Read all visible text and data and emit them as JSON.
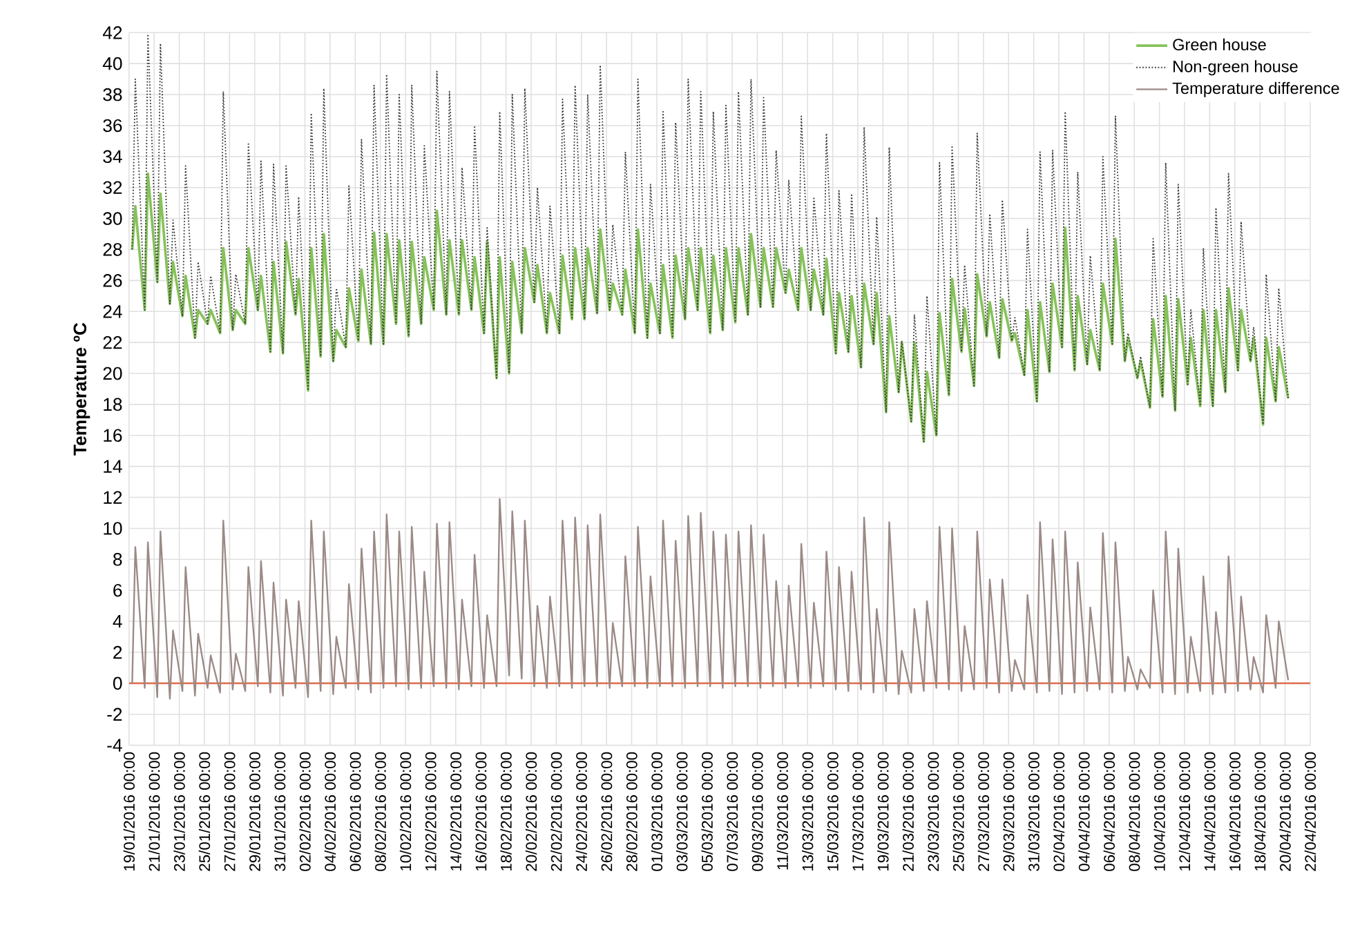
{
  "chart_data": {
    "type": "line",
    "ylabel": "Temperature ºC",
    "legend": "top right",
    "grid": true,
    "xlim": [
      "2016-01-19",
      "2016-04-22"
    ],
    "ylim": [
      -4,
      42
    ],
    "yticks": [
      -4,
      -2,
      0,
      2,
      4,
      6,
      8,
      10,
      12,
      14,
      16,
      18,
      20,
      22,
      24,
      26,
      28,
      30,
      32,
      34,
      36,
      38,
      40,
      42
    ],
    "xticks": [
      {
        "value": "2016-01-19",
        "label": "19/01/2016 00:00"
      },
      {
        "value": "2016-01-21",
        "label": "21/01/2016 00:00"
      },
      {
        "value": "2016-01-23",
        "label": "23/01/2016 00:00"
      },
      {
        "value": "2016-01-25",
        "label": "25/01/2016 00:00"
      },
      {
        "value": "2016-01-27",
        "label": "27/01/2016 00:00"
      },
      {
        "value": "2016-01-29",
        "label": "29/01/2016 00:00"
      },
      {
        "value": "2016-01-31",
        "label": "31/01/2016 00:00"
      },
      {
        "value": "2016-02-02",
        "label": "02/02/2016 00:00"
      },
      {
        "value": "2016-02-04",
        "label": "04/02/2016 00:00"
      },
      {
        "value": "2016-02-06",
        "label": "06/02/2016 00:00"
      },
      {
        "value": "2016-02-08",
        "label": "08/02/2016 00:00"
      },
      {
        "value": "2016-02-10",
        "label": "10/02/2016 00:00"
      },
      {
        "value": "2016-02-12",
        "label": "12/02/2016 00:00"
      },
      {
        "value": "2016-02-14",
        "label": "14/02/2016 00:00"
      },
      {
        "value": "2016-02-16",
        "label": "16/02/2016 00:00"
      },
      {
        "value": "2016-02-18",
        "label": "18/02/2016 00:00"
      },
      {
        "value": "2016-02-20",
        "label": "20/02/2016 00:00"
      },
      {
        "value": "2016-02-22",
        "label": "22/02/2016 00:00"
      },
      {
        "value": "2016-02-24",
        "label": "24/02/2016 00:00"
      },
      {
        "value": "2016-02-26",
        "label": "26/02/2016 00:00"
      },
      {
        "value": "2016-02-28",
        "label": "28/02/2016 00:00"
      },
      {
        "value": "2016-03-01",
        "label": "01/03/2016 00:00"
      },
      {
        "value": "2016-03-03",
        "label": "03/03/2016 00:00"
      },
      {
        "value": "2016-03-05",
        "label": "05/03/2016 00:00"
      },
      {
        "value": "2016-03-07",
        "label": "07/03/2016 00:00"
      },
      {
        "value": "2016-03-09",
        "label": "09/03/2016 00:00"
      },
      {
        "value": "2016-03-11",
        "label": "11/03/2016 00:00"
      },
      {
        "value": "2016-03-13",
        "label": "13/03/2016 00:00"
      },
      {
        "value": "2016-03-15",
        "label": "15/03/2016 00:00"
      },
      {
        "value": "2016-03-17",
        "label": "17/03/2016 00:00"
      },
      {
        "value": "2016-03-19",
        "label": "19/03/2016 00:00"
      },
      {
        "value": "2016-03-21",
        "label": "21/03/2016 00:00"
      },
      {
        "value": "2016-03-23",
        "label": "23/03/2016 00:00"
      },
      {
        "value": "2016-03-25",
        "label": "25/03/2016 00:00"
      },
      {
        "value": "2016-03-27",
        "label": "27/03/2016 00:00"
      },
      {
        "value": "2016-03-29",
        "label": "29/03/2016 00:00"
      },
      {
        "value": "2016-03-31",
        "label": "31/03/2016 00:00"
      },
      {
        "value": "2016-04-02",
        "label": "02/04/2016 00:00"
      },
      {
        "value": "2016-04-04",
        "label": "04/04/2016 00:00"
      },
      {
        "value": "2016-04-06",
        "label": "06/04/2016 00:00"
      },
      {
        "value": "2016-04-08",
        "label": "08/04/2016 00:00"
      },
      {
        "value": "2016-04-10",
        "label": "10/04/2016 00:00"
      },
      {
        "value": "2016-04-12",
        "label": "12/04/2016 00:00"
      },
      {
        "value": "2016-04-14",
        "label": "14/04/2016 00:00"
      },
      {
        "value": "2016-04-16",
        "label": "16/04/2016 00:00"
      },
      {
        "value": "2016-04-18",
        "label": "18/04/2016 00:00"
      },
      {
        "value": "2016-04-20",
        "label": "20/04/2016 00:00"
      },
      {
        "value": "2016-04-22",
        "label": "22/04/2016 00:00"
      }
    ],
    "ref_lines": [
      {
        "axis": "y",
        "value": 0,
        "color": "#e2704e"
      }
    ],
    "x": [
      "2016-01-19T06:00",
      "2016-01-19T12:00",
      "2016-01-20T06:00",
      "2016-01-20T12:00",
      "2016-01-21T06:00",
      "2016-01-21T12:00",
      "2016-01-22T06:00",
      "2016-01-22T12:00",
      "2016-01-23T06:00",
      "2016-01-23T12:00",
      "2016-01-24T06:00",
      "2016-01-24T12:00",
      "2016-01-25T06:00",
      "2016-01-25T12:00",
      "2016-01-26T06:00",
      "2016-01-26T12:00",
      "2016-01-27T06:00",
      "2016-01-27T12:00",
      "2016-01-28T06:00",
      "2016-01-28T12:00",
      "2016-01-29T06:00",
      "2016-01-29T12:00",
      "2016-01-30T06:00",
      "2016-01-30T12:00",
      "2016-01-31T06:00",
      "2016-01-31T12:00",
      "2016-02-01T06:00",
      "2016-02-01T12:00",
      "2016-02-02T06:00",
      "2016-02-02T12:00",
      "2016-02-03T06:00",
      "2016-02-03T12:00",
      "2016-02-04T06:00",
      "2016-02-04T12:00",
      "2016-02-05T06:00",
      "2016-02-05T12:00",
      "2016-02-06T06:00",
      "2016-02-06T12:00",
      "2016-02-07T06:00",
      "2016-02-07T12:00",
      "2016-02-08T06:00",
      "2016-02-08T12:00",
      "2016-02-09T06:00",
      "2016-02-09T12:00",
      "2016-02-10T06:00",
      "2016-02-10T12:00",
      "2016-02-11T06:00",
      "2016-02-11T12:00",
      "2016-02-12T06:00",
      "2016-02-12T12:00",
      "2016-02-13T06:00",
      "2016-02-13T12:00",
      "2016-02-14T06:00",
      "2016-02-14T12:00",
      "2016-02-15T06:00",
      "2016-02-15T12:00",
      "2016-02-16T06:00",
      "2016-02-16T12:00",
      "2016-02-17T06:00",
      "2016-02-17T12:00",
      "2016-02-18T06:00",
      "2016-02-18T12:00",
      "2016-02-19T06:00",
      "2016-02-19T12:00",
      "2016-02-20T06:00",
      "2016-02-20T12:00",
      "2016-02-21T06:00",
      "2016-02-21T12:00",
      "2016-02-22T06:00",
      "2016-02-22T12:00",
      "2016-02-23T06:00",
      "2016-02-23T12:00",
      "2016-02-24T06:00",
      "2016-02-24T12:00",
      "2016-02-25T06:00",
      "2016-02-25T12:00",
      "2016-02-26T06:00",
      "2016-02-26T12:00",
      "2016-02-27T06:00",
      "2016-02-27T12:00",
      "2016-02-28T06:00",
      "2016-02-28T12:00",
      "2016-02-29T06:00",
      "2016-02-29T12:00",
      "2016-03-01T06:00",
      "2016-03-01T12:00",
      "2016-03-02T06:00",
      "2016-03-02T12:00",
      "2016-03-03T06:00",
      "2016-03-03T12:00",
      "2016-03-04T06:00",
      "2016-03-04T12:00",
      "2016-03-05T06:00",
      "2016-03-05T12:00",
      "2016-03-06T06:00",
      "2016-03-06T12:00",
      "2016-03-07T06:00",
      "2016-03-07T12:00",
      "2016-03-08T06:00",
      "2016-03-08T12:00",
      "2016-03-09T06:00",
      "2016-03-09T12:00",
      "2016-03-10T06:00",
      "2016-03-10T12:00",
      "2016-03-11T06:00",
      "2016-03-11T12:00",
      "2016-03-12T06:00",
      "2016-03-12T12:00",
      "2016-03-13T06:00",
      "2016-03-13T12:00",
      "2016-03-14T06:00",
      "2016-03-14T12:00",
      "2016-03-15T06:00",
      "2016-03-15T12:00",
      "2016-03-16T06:00",
      "2016-03-16T12:00",
      "2016-03-17T06:00",
      "2016-03-17T12:00",
      "2016-03-18T06:00",
      "2016-03-18T12:00",
      "2016-03-19T06:00",
      "2016-03-19T12:00",
      "2016-03-20T06:00",
      "2016-03-20T12:00",
      "2016-03-21T06:00",
      "2016-03-21T12:00",
      "2016-03-22T06:00",
      "2016-03-22T12:00",
      "2016-03-23T06:00",
      "2016-03-23T12:00",
      "2016-03-24T06:00",
      "2016-03-24T12:00",
      "2016-03-25T06:00",
      "2016-03-25T12:00",
      "2016-03-26T06:00",
      "2016-03-26T12:00",
      "2016-03-27T06:00",
      "2016-03-27T12:00",
      "2016-03-28T06:00",
      "2016-03-28T12:00",
      "2016-03-29T06:00",
      "2016-03-29T12:00",
      "2016-03-30T06:00",
      "2016-03-30T12:00",
      "2016-03-31T06:00",
      "2016-03-31T12:00",
      "2016-04-01T06:00",
      "2016-04-01T12:00",
      "2016-04-02T06:00",
      "2016-04-02T12:00",
      "2016-04-03T06:00",
      "2016-04-03T12:00",
      "2016-04-04T06:00",
      "2016-04-04T12:00",
      "2016-04-05T06:00",
      "2016-04-05T12:00",
      "2016-04-06T06:00",
      "2016-04-06T12:00",
      "2016-04-07T06:00",
      "2016-04-07T12:00",
      "2016-04-08T06:00",
      "2016-04-08T12:00",
      "2016-04-09T06:00",
      "2016-04-09T12:00",
      "2016-04-10T06:00",
      "2016-04-10T12:00",
      "2016-04-11T06:00",
      "2016-04-11T12:00",
      "2016-04-12T06:00",
      "2016-04-12T12:00",
      "2016-04-13T06:00",
      "2016-04-13T12:00",
      "2016-04-14T06:00",
      "2016-04-14T12:00",
      "2016-04-15T06:00",
      "2016-04-15T12:00",
      "2016-04-16T06:00",
      "2016-04-16T12:00",
      "2016-04-17T06:00",
      "2016-04-17T12:00",
      "2016-04-18T06:00",
      "2016-04-18T12:00",
      "2016-04-19T06:00",
      "2016-04-19T12:00",
      "2016-04-20T06:00"
    ],
    "series": [
      {
        "name": "Green house",
        "color": "#86c25a",
        "line_style": "solid",
        "values": [
          28.0,
          30.8,
          24.1,
          32.9,
          25.9,
          31.6,
          24.5,
          27.2,
          23.7,
          26.3,
          22.3,
          24.1,
          23.2,
          24.1,
          22.6,
          28.1,
          22.8,
          24.1,
          23.2,
          28.1,
          24.1,
          26.3,
          21.4,
          27.2,
          21.3,
          28.5,
          23.8,
          26.1,
          18.9,
          28.1,
          21.1,
          29.0,
          20.8,
          22.8,
          21.7,
          25.5,
          22.1,
          26.7,
          21.9,
          29.1,
          21.9,
          29.0,
          23.2,
          28.6,
          22.4,
          28.5,
          23.2,
          27.5,
          24.1,
          30.5,
          23.8,
          28.6,
          23.8,
          28.6,
          24.1,
          27.5,
          22.6,
          28.5,
          19.7,
          27.5,
          20.0,
          27.2,
          22.6,
          28.1,
          24.6,
          27.0,
          22.6,
          25.2,
          22.6,
          27.6,
          23.5,
          28.1,
          23.5,
          28.1,
          23.9,
          29.3,
          24.1,
          25.8,
          23.8,
          26.7,
          22.6,
          29.3,
          22.3,
          25.8,
          22.6,
          27.0,
          22.3,
          27.6,
          23.5,
          28.1,
          24.1,
          28.1,
          22.6,
          27.6,
          22.8,
          28.1,
          23.3,
          28.1,
          23.8,
          29.0,
          24.3,
          28.1,
          24.3,
          28.1,
          25.2,
          26.7,
          24.1,
          28.1,
          24.1,
          26.7,
          23.8,
          27.4,
          21.3,
          25.2,
          21.4,
          25.0,
          20.4,
          25.8,
          21.9,
          25.2,
          17.5,
          23.7,
          18.8,
          22.0,
          16.9,
          22.0,
          15.6,
          20.1,
          16.0,
          23.9,
          18.6,
          26.1,
          21.4,
          24.2,
          19.2,
          26.4,
          22.4,
          24.6,
          21.0,
          24.8,
          22.1,
          22.6,
          19.9,
          24.1,
          18.2,
          24.6,
          20.1,
          25.8,
          21.7,
          29.4,
          20.2,
          25.0,
          20.6,
          22.8,
          20.2,
          25.8,
          21.9,
          28.7,
          20.8,
          22.3,
          19.7,
          20.8,
          17.8,
          23.5,
          18.5,
          25.0,
          17.6,
          24.8,
          19.3,
          22.3,
          17.9,
          24.1,
          17.9,
          24.1,
          18.8,
          25.5,
          20.2,
          24.1,
          20.8,
          22.3,
          16.7,
          22.3,
          18.2,
          21.7,
          18.4
        ]
      },
      {
        "name": "Non-green house",
        "color": "#3a3a3a",
        "line_style": "dotted",
        "values": [
          28.0,
          39.0,
          24.1,
          41.9,
          25.9,
          41.3,
          24.5,
          29.9,
          23.7,
          33.4,
          22.3,
          27.2,
          23.2,
          26.3,
          22.6,
          38.2,
          22.8,
          26.4,
          23.2,
          34.9,
          24.1,
          33.7,
          21.4,
          33.5,
          21.3,
          33.4,
          23.8,
          31.4,
          18.9,
          36.8,
          21.1,
          38.4,
          20.8,
          25.5,
          21.7,
          32.1,
          22.1,
          35.1,
          21.9,
          38.6,
          21.9,
          39.3,
          23.2,
          38.0,
          22.4,
          38.6,
          23.2,
          34.7,
          24.1,
          39.5,
          23.8,
          38.2,
          23.8,
          33.3,
          24.1,
          36.0,
          22.6,
          29.4,
          19.7,
          36.9,
          20.0,
          38.0,
          22.6,
          38.4,
          24.6,
          32.0,
          22.6,
          30.8,
          22.6,
          37.7,
          23.5,
          38.6,
          23.5,
          38.0,
          23.9,
          39.9,
          24.1,
          29.6,
          23.8,
          34.3,
          22.6,
          39.0,
          22.3,
          32.2,
          22.6,
          36.9,
          22.3,
          36.2,
          23.5,
          39.0,
          24.1,
          38.2,
          22.6,
          36.9,
          22.8,
          37.3,
          23.3,
          38.2,
          23.8,
          39.0,
          24.3,
          37.8,
          24.3,
          34.4,
          25.2,
          32.5,
          24.1,
          36.6,
          24.1,
          31.4,
          23.8,
          35.5,
          21.3,
          31.8,
          21.4,
          31.6,
          20.4,
          35.9,
          21.9,
          30.1,
          17.5,
          34.6,
          18.8,
          22.1,
          16.9,
          23.8,
          15.6,
          25.0,
          16.0,
          33.6,
          18.6,
          34.7,
          21.4,
          27.0,
          19.2,
          35.5,
          22.4,
          30.3,
          21.0,
          31.2,
          22.1,
          23.6,
          19.9,
          29.3,
          18.2,
          34.3,
          20.1,
          34.4,
          21.7,
          36.9,
          20.2,
          33.0,
          20.6,
          27.6,
          20.2,
          34.0,
          21.9,
          36.6,
          20.8,
          22.6,
          19.7,
          21.1,
          17.8,
          28.7,
          18.5,
          33.6,
          17.6,
          32.2,
          19.3,
          24.1,
          17.9,
          28.1,
          17.9,
          30.7,
          18.8,
          32.9,
          20.2,
          29.8,
          20.8,
          23.0,
          16.7,
          26.4,
          18.2,
          25.5,
          18.4
        ]
      },
      {
        "name": "Temperature difference",
        "color": "#9b8a86",
        "line_style": "solid",
        "values": [
          0.0,
          8.8,
          -0.3,
          9.1,
          -0.9,
          9.8,
          -1.0,
          3.4,
          -0.5,
          7.5,
          -0.8,
          3.2,
          -0.3,
          1.8,
          -0.6,
          10.5,
          -0.4,
          1.9,
          -0.5,
          7.5,
          -0.2,
          7.9,
          -0.6,
          6.5,
          -0.8,
          5.4,
          -0.3,
          5.3,
          -0.9,
          10.5,
          -0.5,
          9.8,
          -0.7,
          3.0,
          -0.3,
          6.4,
          -0.4,
          8.7,
          -0.6,
          9.8,
          -0.3,
          10.9,
          -0.2,
          9.8,
          -0.4,
          10.1,
          -0.3,
          7.2,
          -0.2,
          10.3,
          -0.3,
          10.4,
          -0.4,
          5.4,
          -0.2,
          8.3,
          -0.3,
          4.4,
          -0.2,
          11.9,
          0.5,
          11.1,
          0.3,
          10.5,
          -0.2,
          5.0,
          -0.3,
          5.6,
          -0.2,
          10.5,
          -0.3,
          10.7,
          -0.2,
          10.2,
          -0.2,
          10.9,
          -0.3,
          3.9,
          -0.2,
          8.2,
          -0.2,
          10.1,
          -0.3,
          6.9,
          -0.2,
          10.5,
          -0.2,
          9.2,
          -0.3,
          10.8,
          -0.2,
          11.0,
          -0.2,
          9.8,
          -0.3,
          9.6,
          -0.2,
          9.8,
          -0.2,
          10.2,
          -0.3,
          9.6,
          -0.2,
          6.6,
          -0.3,
          6.3,
          -0.2,
          9.0,
          -0.3,
          5.2,
          -0.2,
          8.5,
          -0.4,
          7.5,
          -0.5,
          7.2,
          -0.4,
          10.7,
          -0.6,
          4.8,
          -0.5,
          10.4,
          -0.7,
          2.1,
          -0.6,
          4.8,
          -0.5,
          5.3,
          -0.3,
          10.1,
          -0.4,
          10.0,
          -0.5,
          3.7,
          -0.4,
          9.8,
          -0.3,
          6.7,
          -0.6,
          6.7,
          -0.5,
          1.5,
          -0.4,
          5.7,
          -0.6,
          10.4,
          -0.5,
          9.3,
          -0.7,
          9.8,
          -0.6,
          7.8,
          -0.5,
          4.9,
          -0.4,
          9.7,
          -0.6,
          9.1,
          -0.5,
          1.7,
          -0.4,
          0.9,
          -0.3,
          6.0,
          -0.6,
          9.8,
          -0.7,
          8.7,
          -0.6,
          3.0,
          -0.5,
          6.9,
          -0.7,
          4.6,
          -0.6,
          8.2,
          -0.5,
          5.6,
          -0.4,
          1.7,
          -0.6,
          4.4,
          -0.3,
          4.0,
          0.2
        ]
      }
    ]
  }
}
